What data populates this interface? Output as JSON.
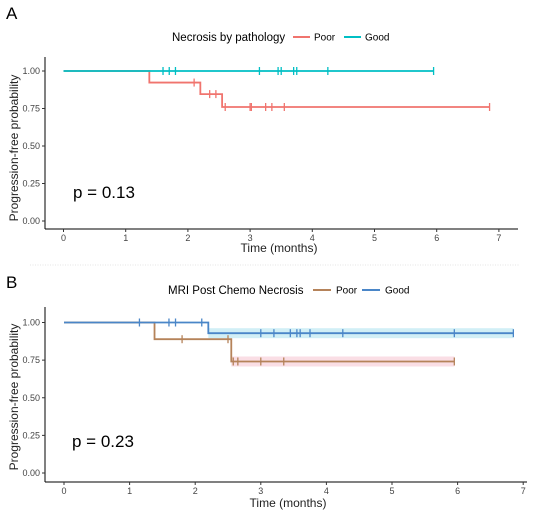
{
  "chart_data": [
    {
      "panel": "A",
      "type": "line",
      "legend_title": "Necrosis by pathology",
      "legend_position": "top",
      "xlabel": "Time (months)",
      "ylabel": "Progression-free probability",
      "xlim": [
        0,
        7
      ],
      "ylim": [
        0,
        1
      ],
      "xticks": [
        "0",
        "1",
        "2",
        "3",
        "4",
        "5",
        "6",
        "7"
      ],
      "yticks": [
        "0.00",
        "0.25",
        "0.50",
        "0.75",
        "1.00"
      ],
      "grid": false,
      "annotation": "p = 0.13",
      "series": [
        {
          "name": "Poor",
          "color": "#f0746e",
          "steps": [
            [
              0,
              1.0
            ],
            [
              1.38,
              0.923
            ],
            [
              2.2,
              0.846
            ],
            [
              2.55,
              0.76
            ],
            [
              6.85,
              0.76
            ]
          ],
          "censored": [
            [
              2.1,
              0.923
            ],
            [
              2.35,
              0.846
            ],
            [
              2.45,
              0.846
            ],
            [
              2.6,
              0.76
            ],
            [
              3.0,
              0.76
            ],
            [
              3.02,
              0.76
            ],
            [
              3.25,
              0.76
            ],
            [
              3.35,
              0.76
            ],
            [
              3.55,
              0.76
            ],
            [
              6.85,
              0.76
            ]
          ]
        },
        {
          "name": "Good",
          "color": "#00bfc4",
          "steps": [
            [
              0,
              1.0
            ],
            [
              5.95,
              1.0
            ]
          ],
          "censored": [
            [
              1.6,
              1.0
            ],
            [
              1.7,
              1.0
            ],
            [
              1.8,
              1.0
            ],
            [
              3.15,
              1.0
            ],
            [
              3.45,
              1.0
            ],
            [
              3.5,
              1.0
            ],
            [
              3.7,
              1.0
            ],
            [
              3.75,
              1.0
            ],
            [
              4.25,
              1.0
            ],
            [
              5.95,
              1.0
            ]
          ]
        }
      ]
    },
    {
      "panel": "B",
      "type": "line",
      "legend_title": "MRI Post Chemo Necrosis",
      "legend_position": "top",
      "xlabel": "Time (months)",
      "ylabel": "Progression-free probability",
      "xlim": [
        0,
        7
      ],
      "ylim": [
        0,
        1
      ],
      "xticks": [
        "0",
        "1",
        "2",
        "3",
        "4",
        "5",
        "6",
        "7"
      ],
      "yticks": [
        "0.00",
        "0.25",
        "0.50",
        "0.75",
        "1.00"
      ],
      "grid": false,
      "annotation": "p = 0.23",
      "series": [
        {
          "name": "Poor",
          "color": "#b5835a",
          "band_color": "#f6c8d4",
          "steps": [
            [
              0,
              1.0
            ],
            [
              1.38,
              0.889
            ],
            [
              2.55,
              0.741
            ],
            [
              5.95,
              0.741
            ]
          ],
          "censored": [
            [
              1.8,
              0.889
            ],
            [
              2.5,
              0.889
            ],
            [
              2.58,
              0.741
            ],
            [
              2.65,
              0.741
            ],
            [
              3.0,
              0.741
            ],
            [
              3.35,
              0.741
            ],
            [
              5.95,
              0.741
            ]
          ]
        },
        {
          "name": "Good",
          "color": "#4a86c8",
          "band_color": "#b3e5f0",
          "steps": [
            [
              0,
              1.0
            ],
            [
              2.2,
              0.929
            ],
            [
              6.85,
              0.929
            ]
          ],
          "censored": [
            [
              1.15,
              1.0
            ],
            [
              1.6,
              1.0
            ],
            [
              1.7,
              1.0
            ],
            [
              2.1,
              1.0
            ],
            [
              3.0,
              0.929
            ],
            [
              3.2,
              0.929
            ],
            [
              3.45,
              0.929
            ],
            [
              3.55,
              0.929
            ],
            [
              3.6,
              0.929
            ],
            [
              3.75,
              0.929
            ],
            [
              4.25,
              0.929
            ],
            [
              5.95,
              0.929
            ],
            [
              6.85,
              0.929
            ]
          ]
        }
      ]
    }
  ]
}
